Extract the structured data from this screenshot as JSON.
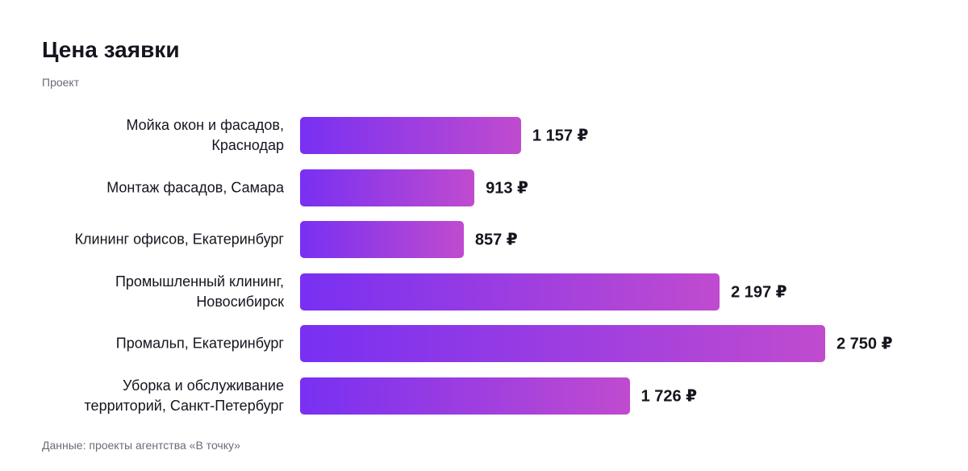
{
  "chart_data": {
    "type": "bar",
    "orientation": "horizontal",
    "title": "Цена заявки",
    "subtitle": "Проект",
    "source": "Данные: проекты агентства «В точку»",
    "categories": [
      "Мойка окон и фасадов,\nКраснодар",
      "Монтаж фасадов, Самара",
      "Клининг офисов, Екатеринбург",
      "Промышленный клининг,\nНовосибирск",
      "Промальп, Екатеринбург",
      "Уборка и обслуживание\nтерриторий, Санкт-Петербург"
    ],
    "values": [
      1157,
      913,
      857,
      2197,
      2750,
      1726
    ],
    "value_labels": [
      "1 157 ₽",
      "913 ₽",
      "857 ₽",
      "2 197 ₽",
      "2 750 ₽",
      "1 726 ₽"
    ],
    "gradient": [
      "#7830f2",
      "#c04bcf"
    ]
  }
}
